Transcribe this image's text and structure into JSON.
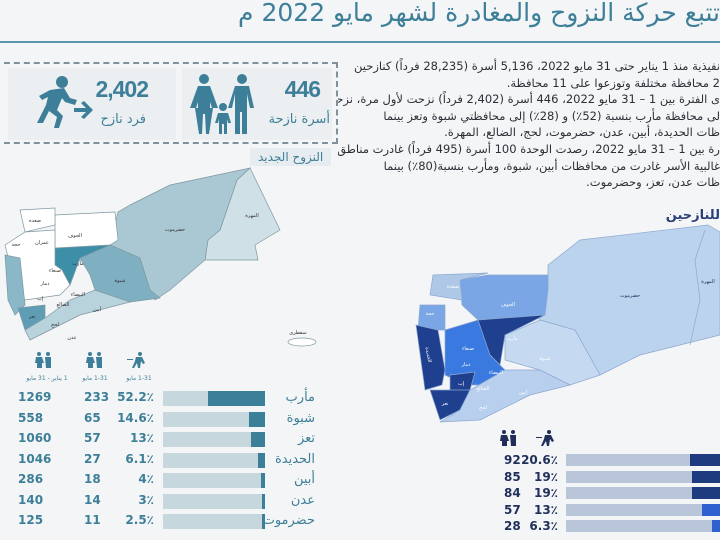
{
  "header": {
    "title": "تتبع حركة النزوح والمغادرة لشهر مايو 2022 م"
  },
  "stats": [
    {
      "value": "446",
      "label": "أسرة نازحة",
      "icon": "family-icon"
    },
    {
      "value": "2,402",
      "label": "فرد نازح",
      "icon": "running-person-icon"
    }
  ],
  "left_map": {
    "title": "النزوح الجديد",
    "labels": {
      "mahra": "المهرة",
      "hadramawt": "حضرموت",
      "shabwa": "شبوة",
      "marib": "مأرب",
      "jawf": "الجوف",
      "saada": "صعدة",
      "amran": "عمران",
      "hajjah": "حجة",
      "sanaa": "صنعاء",
      "dhamar": "ذمار",
      "bayda": "البيضاء",
      "hodeidah": "الحديدة",
      "ibb": "إب",
      "dhale": "الضالع",
      "taiz": "تعز",
      "lahj": "لحج",
      "abyan": "أبين",
      "aden": "عدن",
      "socotra": "سقطرى"
    },
    "colors": {
      "dark": "#3d8fa8",
      "mid": "#7fb0c2",
      "light": "#a9c8d3",
      "pale": "#cfe0e6"
    }
  },
  "paragraph": [
    "نفيذية منذ 1 يناير حتى 31 مايو 2022، 5,136 أسرة (28,235 فرداً) كنازحين",
    "2 محافظة مختلفة وتوزعوا على 11 محافظة.",
    "ى الفترة بين 1 – 31 مايو 2022، 446 أسرة (2,402 فرداً) نزحت لأول مرة، نزحت",
    "لى محافظة مأرب بنسبة (52٪) و (28٪) إلى محافظتي شبوة وتعز بينما",
    "ظات الحديدة، أبين، عدن، حضرموت، لحج، الضالع، المهرة.",
    "رة بين 1 – 31 مايو 2022، رصدت الوحدة 100 أسرة (495 فرداً) غادرت مناطق",
    "غالبية الأسر غادرت من محافظات أبين، شبوة، ومأرب بنسبة(80٪) بينما",
    "ظات عدن، تعز، وحضرموت."
  ],
  "right_map": {
    "title": "للنازحين",
    "labels": {
      "mahra": "المهرة",
      "hadramawt": "حضرموت",
      "shabwa": "شبوة",
      "marib": "مأرب",
      "jawf": "الجوف",
      "saada": "صعدة",
      "hajjah": "حجة",
      "sanaa": "صنعاء",
      "dhamar": "ذمار",
      "bayda": "البيضاء",
      "hodeidah": "الحديدة",
      "ibb": "إب",
      "dhale": "الضالع",
      "taiz": "تعز",
      "lahj": "لحج",
      "abyan": "أبين"
    }
  },
  "left_table": {
    "headers": {
      "pct": "1-31 مايو",
      "families": "1-31 مايو",
      "total": "1 يناير - 31 مايو"
    },
    "colors": {
      "bar_bg": "#c7d7de",
      "bar_fill": "#3b7f99"
    },
    "rows": [
      {
        "name": "مأرب",
        "pct": "52.2٪",
        "pct_value": 52.2,
        "families": "233",
        "total": "1269"
      },
      {
        "name": "شبوة",
        "pct": "14.6٪",
        "pct_value": 14.6,
        "families": "65",
        "total": "558"
      },
      {
        "name": "تعز",
        "pct": "13٪",
        "pct_value": 13,
        "families": "57",
        "total": "1060"
      },
      {
        "name": "الحديدة",
        "pct": "6.1٪",
        "pct_value": 6.1,
        "families": "27",
        "total": "1046"
      },
      {
        "name": "أبين",
        "pct": "4٪",
        "pct_value": 4,
        "families": "18",
        "total": "286"
      },
      {
        "name": "عدن",
        "pct": "3٪",
        "pct_value": 3,
        "families": "14",
        "total": "140"
      },
      {
        "name": "حضرموت",
        "pct": "2.5٪",
        "pct_value": 2.5,
        "families": "11",
        "total": "125"
      }
    ]
  },
  "right_table": {
    "colors": {
      "bar_bg": "#b9c5d9",
      "bar_dark": "#1f3b80",
      "bar_blue": "#2f62d0"
    },
    "rows": [
      {
        "pct": "20.6٪",
        "pct_value": 20.6,
        "families": "92"
      },
      {
        "pct": "19٪",
        "pct_value": 19,
        "families": "85"
      },
      {
        "pct": "19٪",
        "pct_value": 19,
        "families": "84"
      },
      {
        "pct": "13٪",
        "pct_value": 13,
        "families": "57"
      },
      {
        "pct": "6.3٪",
        "pct_value": 6.3,
        "families": "28"
      }
    ]
  }
}
